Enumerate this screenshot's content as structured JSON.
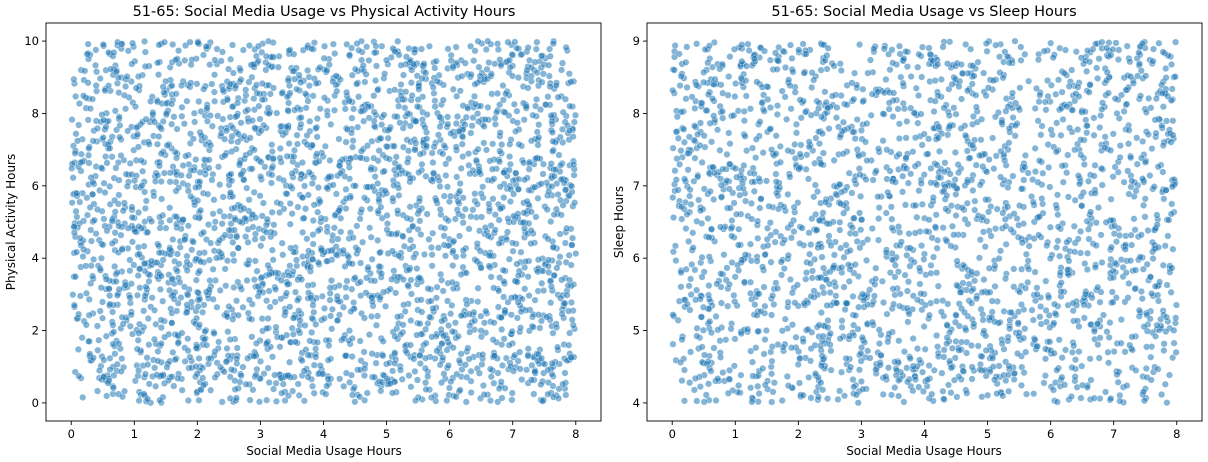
{
  "chart_data": [
    {
      "type": "scatter",
      "title": "51-65: Social Media Usage vs Physical Activity Hours",
      "xlabel": "Social Media Usage Hours",
      "ylabel": "Physical Activity Hours",
      "xlim": [
        -0.4,
        8.4
      ],
      "ylim": [
        -0.5,
        10.5
      ],
      "xticks": [
        0,
        1,
        2,
        3,
        4,
        5,
        6,
        7,
        8
      ],
      "yticks": [
        0,
        2,
        4,
        6,
        8,
        10
      ],
      "point_color": "#1f77b4",
      "point_count": 3000,
      "distribution": "approximately uniform",
      "x_range": [
        0,
        8
      ],
      "y_range": [
        0,
        10
      ],
      "grid": false,
      "legend": "none"
    },
    {
      "type": "scatter",
      "title": "51-65: Social Media Usage vs Sleep Hours",
      "xlabel": "Social Media Usage Hours",
      "ylabel": "Sleep Hours",
      "xlim": [
        -0.4,
        8.4
      ],
      "ylim": [
        3.75,
        9.25
      ],
      "xticks": [
        0,
        1,
        2,
        3,
        4,
        5,
        6,
        7,
        8
      ],
      "yticks": [
        4,
        5,
        6,
        7,
        8,
        9
      ],
      "point_color": "#1f77b4",
      "point_count": 2400,
      "distribution": "approximately uniform",
      "x_range": [
        0,
        8
      ],
      "y_range": [
        4,
        9
      ],
      "grid": false,
      "legend": "none"
    }
  ]
}
